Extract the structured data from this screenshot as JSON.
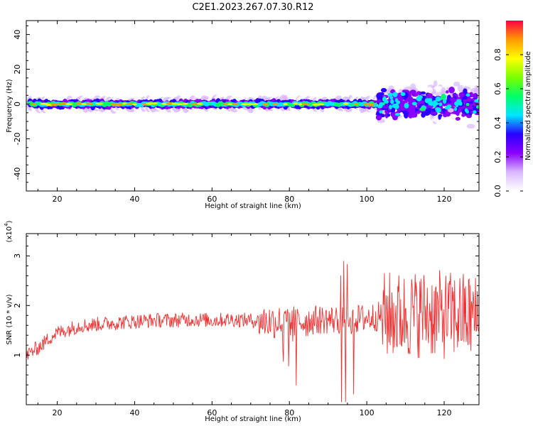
{
  "chart_data": [
    {
      "type": "heatmap",
      "title": "C2E1.2023.267.07.30.R12",
      "xlabel": "Height of straight line (km)",
      "ylabel": "Frequency (Hz)",
      "xlim": [
        12,
        129
      ],
      "ylim": [
        -50,
        48
      ],
      "xticks": [
        20,
        40,
        60,
        80,
        100,
        120
      ],
      "yticks": [
        40,
        20,
        0,
        -20,
        -40
      ],
      "band": {
        "description_values": "signal concentrated near 0 Hz; narrow band 13-103 km, scattered broad band 103-129 km",
        "narrow_x": [
          13,
          103
        ],
        "broad_x": [
          103,
          129
        ]
      },
      "colorbar": {
        "label": "Normalized spectral amplitude",
        "range": [
          0.0,
          1.0
        ],
        "ticks": [
          0.0,
          0.2,
          0.4,
          0.6,
          0.8
        ],
        "colormap": [
          "#ffffff",
          "#d9b8ff",
          "#8a00ff",
          "#2a00ff",
          "#00e6ff",
          "#00ff66",
          "#7cff00",
          "#ffff00",
          "#ff9900",
          "#ff0044"
        ]
      }
    },
    {
      "type": "line",
      "xlabel": "Height of straight line (km)",
      "ylabel": "SNR (10 * v/v)",
      "multiplier_label": "(x10",
      "multiplier_exp": "4",
      "multiplier_close": ")",
      "xlim": [
        12,
        129
      ],
      "ylim": [
        0,
        3.45
      ],
      "xticks": [
        20,
        40,
        60,
        80,
        100,
        120
      ],
      "yticks": [
        1,
        2,
        3
      ],
      "color": "#ee3333",
      "series": [
        {
          "name": "SNR",
          "x": [
            12,
            14,
            16,
            18,
            20,
            22,
            24,
            26,
            28,
            30,
            35,
            40,
            45,
            50,
            55,
            60,
            65,
            70,
            75,
            80,
            85,
            90,
            95,
            100,
            105,
            110,
            115,
            120,
            125,
            129
          ],
          "y": [
            1.0,
            1.1,
            1.2,
            1.35,
            1.45,
            1.5,
            1.55,
            1.6,
            1.6,
            1.62,
            1.65,
            1.68,
            1.7,
            1.7,
            1.72,
            1.7,
            1.72,
            1.7,
            1.68,
            1.65,
            1.7,
            1.72,
            1.7,
            1.75,
            1.8,
            1.8,
            1.85,
            1.8,
            1.8,
            1.75
          ]
        }
      ]
    }
  ]
}
